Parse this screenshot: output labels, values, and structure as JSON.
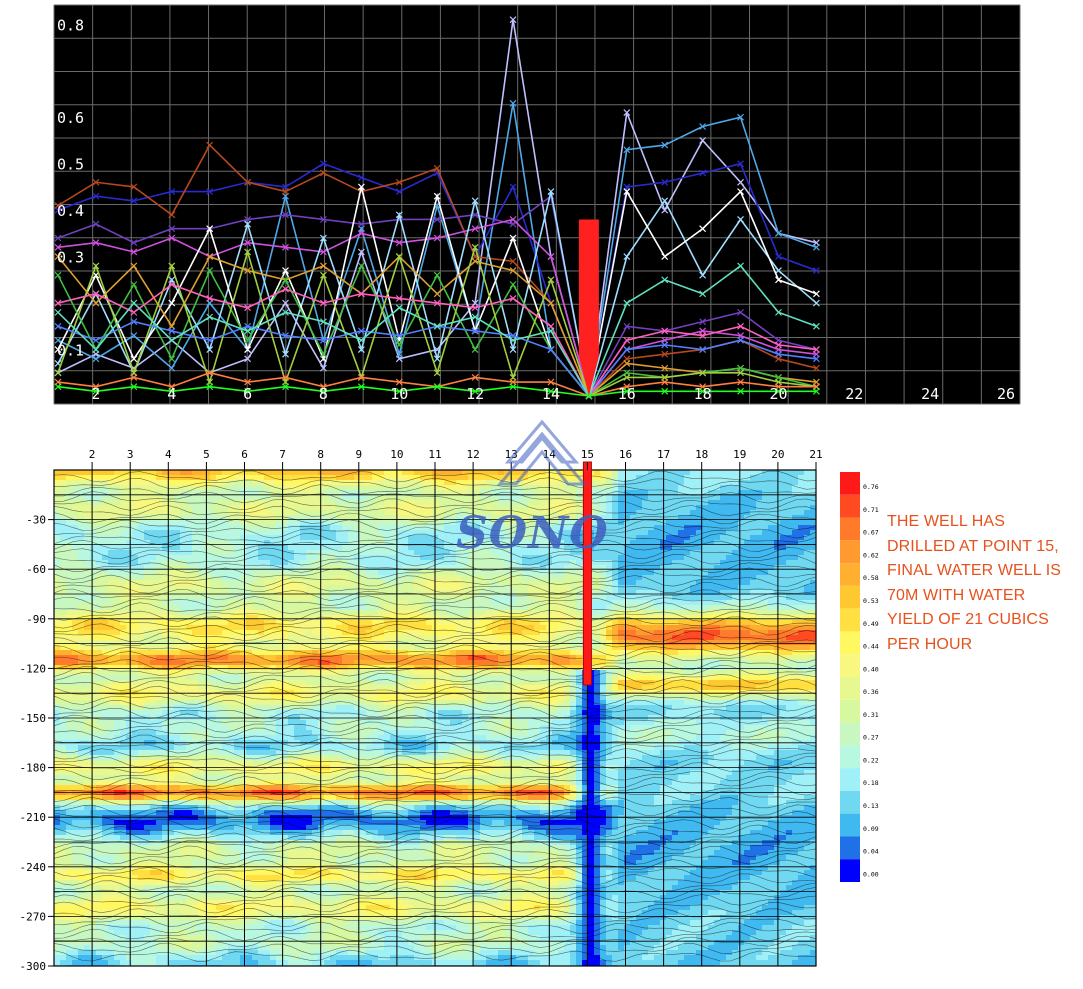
{
  "chart_data": [
    {
      "type": "line",
      "x_ticks": [
        "2",
        "4",
        "6",
        "8",
        "10",
        "12",
        "14",
        "16",
        "18",
        "20",
        "22",
        "24",
        "26"
      ],
      "y_ticks": [
        "0.1",
        "0.3",
        "0.4",
        "0.5",
        "0.6",
        "0.8"
      ],
      "xlim": [
        1,
        26
      ],
      "ylim": [
        0,
        0.82
      ],
      "grid": true,
      "background": "#000000",
      "x": [
        1,
        2,
        3,
        4,
        5,
        6,
        7,
        8,
        9,
        10,
        11,
        12,
        13,
        14,
        15,
        16,
        17,
        18,
        19,
        20,
        21
      ],
      "highlight_point": {
        "x": 15,
        "value": 0.38,
        "color": "#ff2020"
      },
      "series": [
        {
          "color": "#c0c0ff",
          "values": [
            0.05,
            0.09,
            0.06,
            0.12,
            0.05,
            0.08,
            0.2,
            0.06,
            0.31,
            0.08,
            0.1,
            0.2,
            0.81,
            0.3,
            0.0,
            0.61,
            0.4,
            0.55,
            0.46,
            0.35,
            0.33
          ]
        },
        {
          "color": "#4fa8e8",
          "values": [
            0.12,
            0.08,
            0.13,
            0.06,
            0.2,
            0.1,
            0.43,
            0.12,
            0.36,
            0.09,
            0.41,
            0.14,
            0.63,
            0.1,
            0.0,
            0.53,
            0.54,
            0.58,
            0.6,
            0.35,
            0.32
          ]
        },
        {
          "color": "#2a2ad0",
          "values": [
            0.4,
            0.43,
            0.42,
            0.44,
            0.44,
            0.46,
            0.45,
            0.5,
            0.47,
            0.44,
            0.48,
            0.3,
            0.45,
            0.2,
            0.0,
            0.45,
            0.46,
            0.48,
            0.5,
            0.3,
            0.27
          ]
        },
        {
          "color": "#b8481e",
          "values": [
            0.41,
            0.46,
            0.45,
            0.39,
            0.54,
            0.46,
            0.44,
            0.48,
            0.44,
            0.46,
            0.49,
            0.3,
            0.29,
            0.2,
            0.0,
            0.08,
            0.09,
            0.1,
            0.12,
            0.08,
            0.06
          ]
        },
        {
          "color": "#7040c0",
          "values": [
            0.34,
            0.37,
            0.33,
            0.36,
            0.36,
            0.38,
            0.39,
            0.38,
            0.37,
            0.38,
            0.38,
            0.39,
            0.37,
            0.43,
            0.0,
            0.15,
            0.14,
            0.16,
            0.18,
            0.12,
            0.1
          ]
        },
        {
          "color": "#d050e0",
          "values": [
            0.32,
            0.33,
            0.31,
            0.34,
            0.3,
            0.33,
            0.32,
            0.31,
            0.35,
            0.33,
            0.34,
            0.36,
            0.38,
            0.3,
            0.0,
            0.1,
            0.12,
            0.14,
            0.13,
            0.1,
            0.09
          ]
        },
        {
          "color": "#a0e0ff",
          "values": [
            0.07,
            0.22,
            0.05,
            0.25,
            0.1,
            0.37,
            0.09,
            0.34,
            0.1,
            0.39,
            0.08,
            0.42,
            0.1,
            0.44,
            0.0,
            0.3,
            0.42,
            0.26,
            0.38,
            0.27,
            0.2
          ]
        },
        {
          "color": "#ffffff",
          "values": [
            0.1,
            0.26,
            0.08,
            0.2,
            0.36,
            0.1,
            0.27,
            0.08,
            0.45,
            0.12,
            0.43,
            0.14,
            0.34,
            0.1,
            0.0,
            0.44,
            0.3,
            0.36,
            0.44,
            0.25,
            0.22
          ]
        },
        {
          "color": "#e0a030",
          "values": [
            0.3,
            0.2,
            0.28,
            0.15,
            0.3,
            0.27,
            0.25,
            0.28,
            0.22,
            0.3,
            0.22,
            0.29,
            0.27,
            0.2,
            0.0,
            0.07,
            0.06,
            0.05,
            0.06,
            0.04,
            0.03
          ]
        },
        {
          "color": "#40c040",
          "values": [
            0.26,
            0.1,
            0.24,
            0.08,
            0.27,
            0.12,
            0.25,
            0.09,
            0.28,
            0.11,
            0.26,
            0.1,
            0.24,
            0.1,
            0.0,
            0.05,
            0.04,
            0.05,
            0.06,
            0.04,
            0.02
          ]
        },
        {
          "color": "#a0d040",
          "values": [
            0.05,
            0.28,
            0.05,
            0.28,
            0.03,
            0.31,
            0.03,
            0.26,
            0.04,
            0.3,
            0.05,
            0.32,
            0.04,
            0.25,
            0.0,
            0.04,
            0.04,
            0.05,
            0.05,
            0.03,
            0.02
          ]
        },
        {
          "color": "#ff8040",
          "values": [
            0.03,
            0.02,
            0.04,
            0.02,
            0.05,
            0.03,
            0.04,
            0.02,
            0.04,
            0.03,
            0.02,
            0.04,
            0.03,
            0.03,
            0.0,
            0.02,
            0.03,
            0.02,
            0.03,
            0.02,
            0.02
          ]
        },
        {
          "color": "#5080ff",
          "values": [
            0.15,
            0.12,
            0.16,
            0.14,
            0.12,
            0.15,
            0.13,
            0.12,
            0.14,
            0.13,
            0.15,
            0.14,
            0.13,
            0.1,
            0.0,
            0.1,
            0.11,
            0.1,
            0.12,
            0.09,
            0.08
          ]
        },
        {
          "color": "#ff60c0",
          "values": [
            0.2,
            0.22,
            0.18,
            0.24,
            0.21,
            0.19,
            0.23,
            0.2,
            0.22,
            0.21,
            0.2,
            0.19,
            0.21,
            0.15,
            0.0,
            0.12,
            0.14,
            0.13,
            0.15,
            0.11,
            0.1
          ]
        },
        {
          "color": "#60e0c0",
          "values": [
            0.18,
            0.1,
            0.2,
            0.12,
            0.17,
            0.14,
            0.18,
            0.16,
            0.12,
            0.19,
            0.15,
            0.17,
            0.12,
            0.14,
            0.0,
            0.2,
            0.25,
            0.22,
            0.28,
            0.18,
            0.15
          ]
        },
        {
          "color": "#20ff20",
          "values": [
            0.02,
            0.01,
            0.02,
            0.01,
            0.02,
            0.01,
            0.02,
            0.01,
            0.02,
            0.01,
            0.02,
            0.01,
            0.02,
            0.01,
            0.0,
            0.01,
            0.01,
            0.01,
            0.01,
            0.01,
            0.01
          ]
        }
      ]
    },
    {
      "type": "heatmap",
      "x_ticks": [
        "2",
        "3",
        "4",
        "5",
        "6",
        "7",
        "8",
        "9",
        "10",
        "11",
        "12",
        "13",
        "14",
        "15",
        "16",
        "17",
        "18",
        "19",
        "20",
        "21"
      ],
      "x_range": [
        1,
        21
      ],
      "y_ticks": [
        "-30",
        "-60",
        "-90",
        "-120",
        "-150",
        "-180",
        "-210",
        "-240",
        "-270",
        "-300"
      ],
      "y_range": [
        0,
        -300
      ],
      "well": {
        "x": 15,
        "depth": -130
      },
      "colorbar": {
        "labels": [
          "0.76",
          "0.71",
          "0.67",
          "0.62",
          "0.58",
          "0.53",
          "0.49",
          "0.44",
          "0.40",
          "0.36",
          "0.31",
          "0.27",
          "0.22",
          "0.18",
          "0.13",
          "0.09",
          "0.04",
          "0.00"
        ],
        "colors": [
          "#ff1a1a",
          "#ff4a22",
          "#ff7a2a",
          "#ff9a30",
          "#ffb030",
          "#ffc830",
          "#ffe040",
          "#fff860",
          "#f8f880",
          "#e8f890",
          "#d8f8a0",
          "#c8f8c0",
          "#b8f8e0",
          "#a0f0f8",
          "#70d8f0",
          "#40b8f0",
          "#2070e8",
          "#0000ff"
        ]
      },
      "annotation": [
        "THE  WELL  HAS",
        "DRILLED AT POINT 15,",
        "FINAL WATER WELL IS",
        "70M WITH WATER",
        "YIELD OF 21 CUBICS",
        "PER HOUR"
      ],
      "watermark": "SONO"
    }
  ]
}
